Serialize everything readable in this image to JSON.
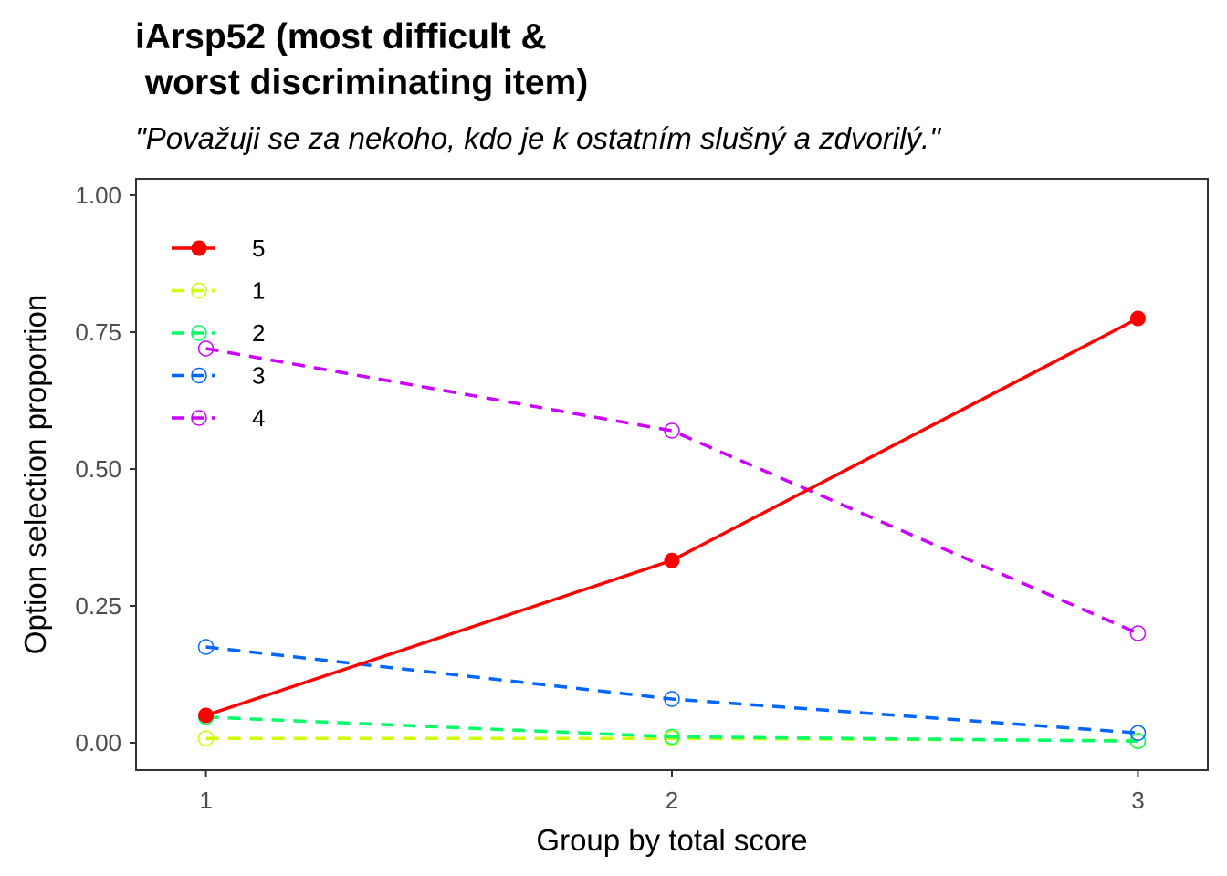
{
  "chart_data": {
    "type": "line",
    "title": "iArsp52 (most difficult &\n worst discriminating item)",
    "subtitle": "\"Považuji se za nekoho, kdo je k ostatním slušný a zdvorilý.\"",
    "xlabel": "Group by total score",
    "ylabel": "Option selection proportion",
    "x": [
      1,
      2,
      3
    ],
    "x_ticks": [
      "1",
      "2",
      "3"
    ],
    "y_ticks": [
      "0.00",
      "0.25",
      "0.50",
      "0.75",
      "1.00"
    ],
    "xlim": [
      0.85,
      3.15
    ],
    "ylim": [
      -0.05,
      1.03
    ],
    "legend_position": "top-left",
    "series": [
      {
        "name": "5",
        "values": [
          0.05,
          0.333,
          0.775
        ],
        "color": "#ff0000",
        "dashed": false,
        "filled": true
      },
      {
        "name": "1",
        "values": [
          0.008,
          0.008,
          0.004
        ],
        "color": "#ccff00",
        "dashed": true,
        "filled": false
      },
      {
        "name": "2",
        "values": [
          0.047,
          0.011,
          0.003
        ],
        "color": "#00ff66",
        "dashed": true,
        "filled": false
      },
      {
        "name": "3",
        "values": [
          0.175,
          0.08,
          0.018
        ],
        "color": "#0066ff",
        "dashed": true,
        "filled": false
      },
      {
        "name": "4",
        "values": [
          0.72,
          0.57,
          0.2
        ],
        "color": "#cc00ff",
        "dashed": true,
        "filled": false
      }
    ]
  }
}
